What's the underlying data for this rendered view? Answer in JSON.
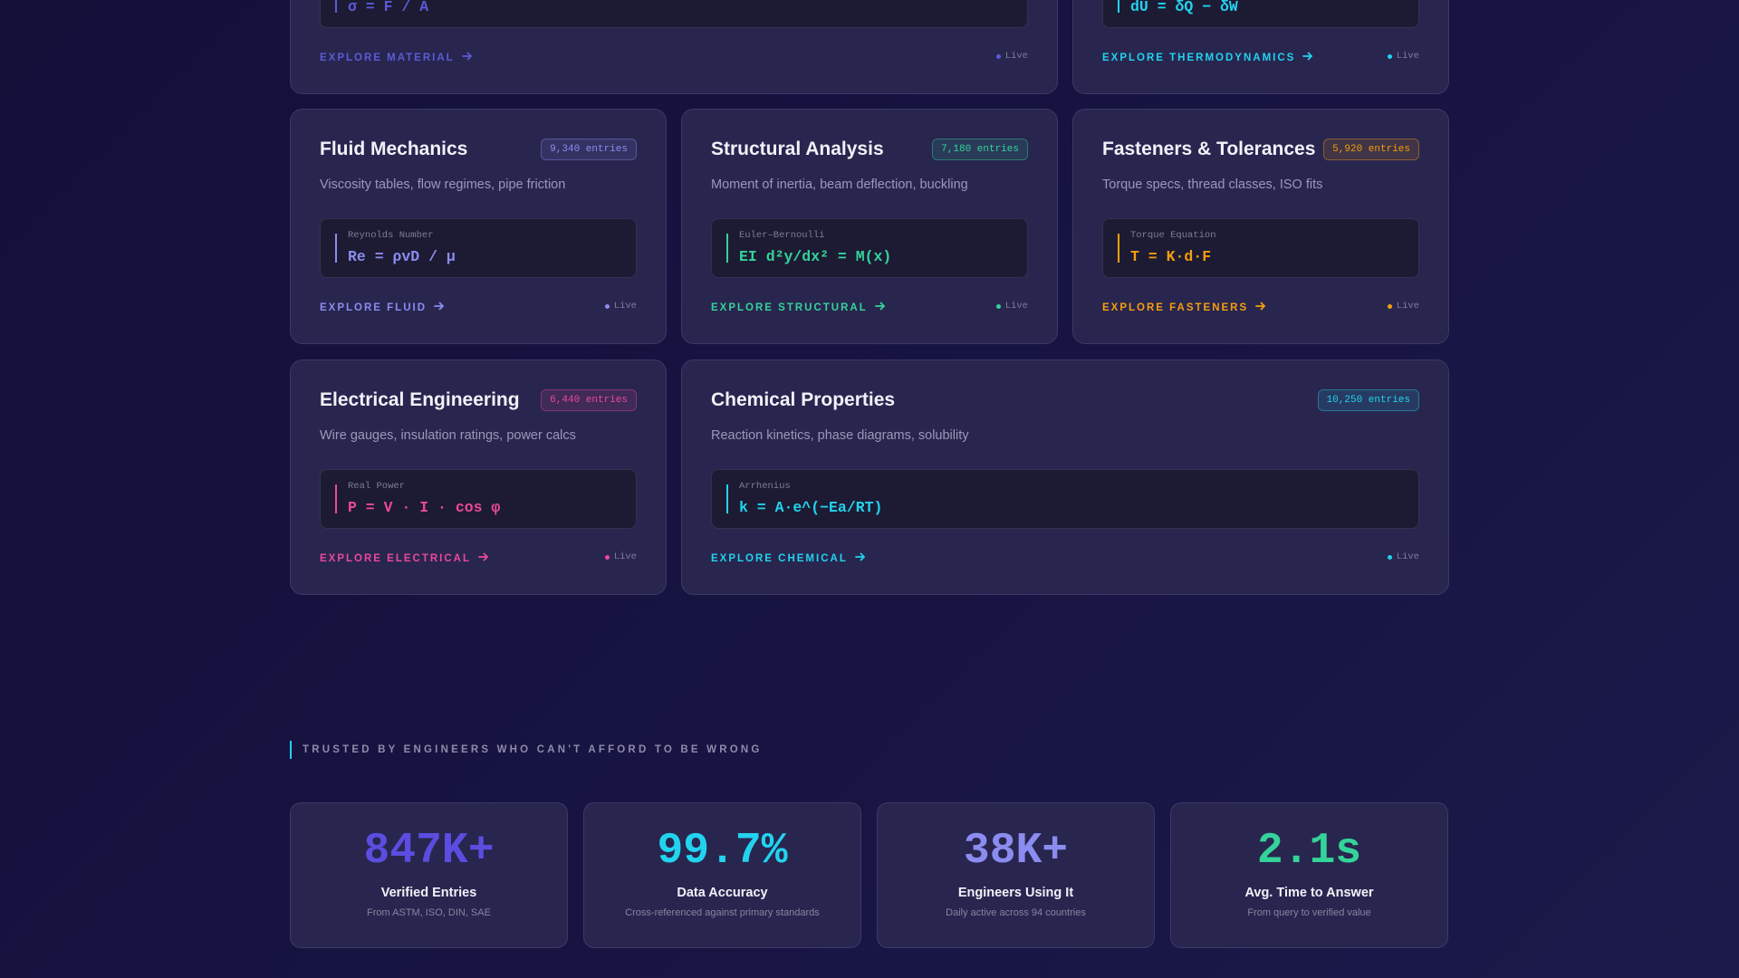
{
  "cards": [
    {
      "formula": "σ = F / A",
      "explore": "EXPLORE MATERIAL",
      "status": "Live"
    },
    {
      "formula": "dU = δQ − δW",
      "explore": "EXPLORE THERMODYNAMICS",
      "status": "Live"
    },
    {
      "title": "Fluid Mechanics",
      "badge": "9,340 entries",
      "description": "Viscosity tables, flow regimes, pipe friction",
      "formula_label": "Reynolds Number",
      "formula": "Re = ρvD / μ",
      "explore": "EXPLORE FLUID",
      "status": "Live"
    },
    {
      "title": "Structural Analysis",
      "badge": "7,180 entries",
      "description": "Moment of inertia, beam deflection, buckling",
      "formula_label": "Euler–Bernoulli",
      "formula": "EI d²y/dx² = M(x)",
      "explore": "EXPLORE STRUCTURAL",
      "status": "Live"
    },
    {
      "title": "Fasteners & Tolerances",
      "badge": "5,920 entries",
      "description": "Torque specs, thread classes, ISO fits",
      "formula_label": "Torque Equation",
      "formula": "T = K·d·F",
      "explore": "EXPLORE FASTENERS",
      "status": "Live"
    },
    {
      "title": "Electrical Engineering",
      "badge": "6,440 entries",
      "description": "Wire gauges, insulation ratings, power calcs",
      "formula_label": "Real Power",
      "formula": "P = V · I · cos φ",
      "explore": "EXPLORE ELECTRICAL",
      "status": "Live"
    },
    {
      "title": "Chemical Properties",
      "badge": "10,250 entries",
      "description": "Reaction kinetics, phase diagrams, solubility",
      "formula_label": "Arrhenius",
      "formula": "k = A·e^(−Ea/RT)",
      "explore": "EXPLORE CHEMICAL",
      "status": "Live"
    }
  ],
  "trust_heading": "TRUSTED BY ENGINEERS WHO CAN'T AFFORD TO BE WRONG",
  "stats": [
    {
      "value": "847K+",
      "label": "Verified Entries",
      "note": "From ASTM, ISO, DIN, SAE"
    },
    {
      "value": "99.7%",
      "label": "Data Accuracy",
      "note": "Cross-referenced against primary standards"
    },
    {
      "value": "38K+",
      "label": "Engineers Using It",
      "note": "Daily active across 94 countries"
    },
    {
      "value": "2.1s",
      "label": "Avg. Time to Answer",
      "note": "From query to verified value"
    }
  ]
}
